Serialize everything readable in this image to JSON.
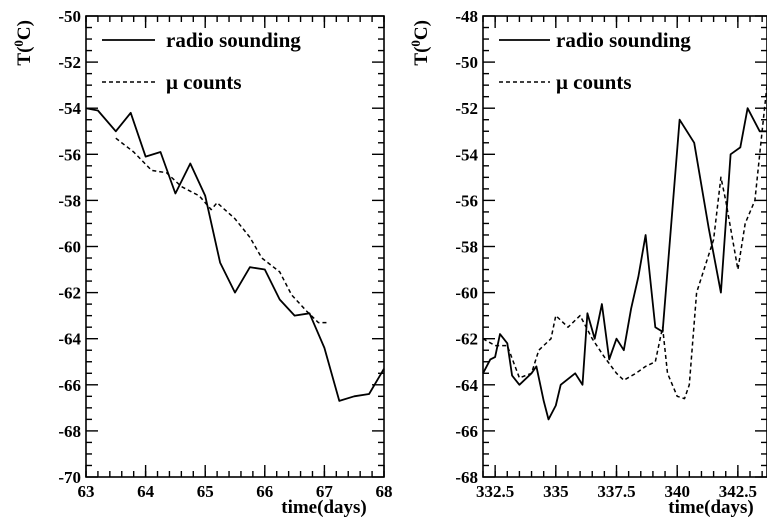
{
  "chart_data": [
    {
      "type": "line",
      "ylabel": "T(",
      "ylabel_sup": "0",
      "ylabel_suffix": "C)",
      "xlabel": "time(days)",
      "xlim": [
        63,
        68
      ],
      "ylim": [
        -70,
        -50
      ],
      "xticks": [
        63,
        64,
        65,
        66,
        67,
        68
      ],
      "xtick_labels": [
        "63",
        "64",
        "65",
        "66",
        "67",
        "68"
      ],
      "yticks": [
        -70,
        -68,
        -66,
        -64,
        -62,
        -60,
        -58,
        -56,
        -54,
        -52,
        -50
      ],
      "ytick_labels": [
        "-70",
        "-68",
        "-66",
        "-64",
        "-62",
        "-60",
        "-58",
        "-56",
        "-54",
        "-52",
        "-50"
      ],
      "legend_position": "top-right",
      "series": [
        {
          "name": "radio sounding",
          "style": "solid",
          "points": [
            [
              63.0,
              -54.0
            ],
            [
              63.2,
              -54.1
            ],
            [
              63.5,
              -55.0
            ],
            [
              63.75,
              -54.2
            ],
            [
              64.0,
              -56.1
            ],
            [
              64.25,
              -55.9
            ],
            [
              64.5,
              -57.7
            ],
            [
              64.75,
              -56.4
            ],
            [
              65.0,
              -57.8
            ],
            [
              65.25,
              -60.7
            ],
            [
              65.5,
              -62.0
            ],
            [
              65.75,
              -60.9
            ],
            [
              66.0,
              -61.0
            ],
            [
              66.25,
              -62.3
            ],
            [
              66.5,
              -63.0
            ],
            [
              66.75,
              -62.9
            ],
            [
              67.0,
              -64.4
            ],
            [
              67.25,
              -66.7
            ],
            [
              67.5,
              -66.5
            ],
            [
              67.75,
              -66.4
            ],
            [
              68.0,
              -65.3
            ]
          ]
        },
        {
          "name": "μ counts",
          "style": "dashed",
          "points": [
            [
              63.5,
              -55.3
            ],
            [
              63.8,
              -55.9
            ],
            [
              64.1,
              -56.7
            ],
            [
              64.35,
              -56.8
            ],
            [
              64.6,
              -57.4
            ],
            [
              64.9,
              -57.8
            ],
            [
              65.1,
              -58.4
            ],
            [
              65.2,
              -58.1
            ],
            [
              65.5,
              -58.8
            ],
            [
              65.75,
              -59.6
            ],
            [
              65.95,
              -60.5
            ],
            [
              66.25,
              -61.1
            ],
            [
              66.45,
              -62.1
            ],
            [
              66.7,
              -62.8
            ],
            [
              66.9,
              -63.3
            ],
            [
              67.05,
              -63.3
            ]
          ]
        }
      ]
    },
    {
      "type": "line",
      "ylabel": "T(",
      "ylabel_sup": "0",
      "ylabel_suffix": "C)",
      "xlabel": "time(days)",
      "xlim": [
        332.0,
        343.7
      ],
      "ylim": [
        -68,
        -48
      ],
      "xticks": [
        332.5,
        335,
        337.5,
        340,
        342.5
      ],
      "xtick_labels": [
        "332.5",
        "335",
        "337.5",
        "340",
        "342.5"
      ],
      "yticks": [
        -68,
        -66,
        -64,
        -62,
        -60,
        -58,
        -56,
        -54,
        -52,
        -50,
        -48
      ],
      "ytick_labels": [
        "-68",
        "-66",
        "-64",
        "-62",
        "-60",
        "-58",
        "-56",
        "-54",
        "-52",
        "-50",
        "-48"
      ],
      "legend_position": "top-right",
      "series": [
        {
          "name": "radio sounding",
          "style": "solid",
          "points": [
            [
              332.0,
              -63.5
            ],
            [
              332.3,
              -62.9
            ],
            [
              332.5,
              -62.8
            ],
            [
              332.7,
              -61.8
            ],
            [
              333.0,
              -62.2
            ],
            [
              333.2,
              -63.6
            ],
            [
              333.5,
              -64.0
            ],
            [
              334.0,
              -63.5
            ],
            [
              334.2,
              -63.2
            ],
            [
              334.5,
              -64.7
            ],
            [
              334.7,
              -65.5
            ],
            [
              335.0,
              -64.9
            ],
            [
              335.2,
              -64.0
            ],
            [
              335.8,
              -63.5
            ],
            [
              336.1,
              -64.0
            ],
            [
              336.3,
              -60.9
            ],
            [
              336.6,
              -62.0
            ],
            [
              336.9,
              -60.5
            ],
            [
              337.2,
              -62.9
            ],
            [
              337.5,
              -62.0
            ],
            [
              337.8,
              -62.5
            ],
            [
              338.1,
              -60.7
            ],
            [
              338.4,
              -59.3
            ],
            [
              338.7,
              -57.5
            ],
            [
              339.1,
              -61.5
            ],
            [
              339.4,
              -61.7
            ],
            [
              340.1,
              -52.5
            ],
            [
              340.7,
              -53.5
            ],
            [
              341.3,
              -57.2
            ],
            [
              341.8,
              -60.0
            ],
            [
              342.2,
              -54.0
            ],
            [
              342.6,
              -53.7
            ],
            [
              342.9,
              -52.0
            ],
            [
              343.4,
              -53.0
            ],
            [
              343.7,
              -53.0
            ]
          ]
        },
        {
          "name": "μ counts",
          "style": "dashed",
          "points": [
            [
              332.0,
              -62.0
            ],
            [
              332.5,
              -62.3
            ],
            [
              333.0,
              -62.3
            ],
            [
              333.5,
              -63.7
            ],
            [
              334.0,
              -63.5
            ],
            [
              334.3,
              -62.5
            ],
            [
              334.8,
              -62.0
            ],
            [
              335.0,
              -61.0
            ],
            [
              335.5,
              -61.5
            ],
            [
              336.0,
              -61.0
            ],
            [
              336.5,
              -62.0
            ],
            [
              337.0,
              -62.8
            ],
            [
              337.5,
              -63.5
            ],
            [
              337.8,
              -63.8
            ],
            [
              338.3,
              -63.5
            ],
            [
              338.7,
              -63.2
            ],
            [
              339.1,
              -63.0
            ],
            [
              339.4,
              -61.5
            ],
            [
              339.6,
              -63.5
            ],
            [
              340.0,
              -64.5
            ],
            [
              340.3,
              -64.6
            ],
            [
              340.5,
              -64.0
            ],
            [
              340.8,
              -60.0
            ],
            [
              341.5,
              -57.7
            ],
            [
              341.8,
              -55.0
            ],
            [
              342.0,
              -56.0
            ],
            [
              342.5,
              -59.0
            ],
            [
              342.8,
              -57.0
            ],
            [
              343.2,
              -56.0
            ],
            [
              343.5,
              -53.0
            ],
            [
              343.7,
              -51.0
            ]
          ]
        }
      ]
    }
  ]
}
